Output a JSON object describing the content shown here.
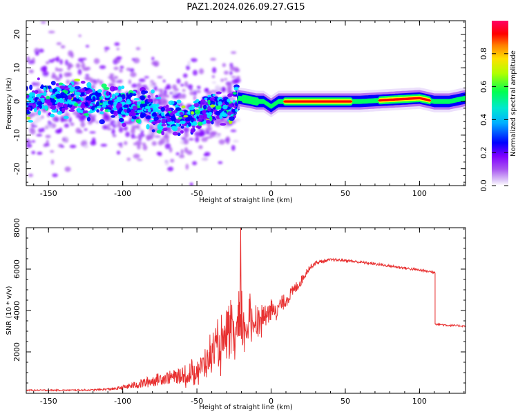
{
  "figure": {
    "title": "PAZ1.2024.026.09.27.G15"
  },
  "chart_data": [
    {
      "type": "heatmap",
      "xlabel": "Height of straight line (km)",
      "ylabel": "Frequency (Hz)",
      "xlim": [
        -165,
        131
      ],
      "ylim": [
        -25,
        24
      ],
      "x_ticks": [
        -150,
        -100,
        -50,
        0,
        50,
        100
      ],
      "y_ticks": [
        -20,
        -10,
        0,
        10,
        20
      ],
      "colorbar": {
        "label": "Normalized spectral amplitude",
        "range": [
          0,
          1
        ],
        "ticks": [
          0.0,
          0.2,
          0.4,
          0.6,
          0.8
        ],
        "colormap": [
          "#ffffff",
          "#e0ccf8",
          "#a855f0",
          "#7f00ff",
          "#0000ff",
          "#00e5ff",
          "#00ff60",
          "#b0ff00",
          "#ffff00",
          "#ff8000",
          "#ff0000",
          "#ff0066"
        ]
      },
      "ridge": {
        "note": "dominant Doppler frequency vs height",
        "x": [
          -165,
          -150,
          -140,
          -130,
          -120,
          -110,
          -100,
          -90,
          -80,
          -70,
          -60,
          -50,
          -40,
          -30,
          -24,
          -22,
          -15,
          -10,
          -5,
          0,
          5,
          10,
          20,
          40,
          60,
          80,
          100,
          110,
          120,
          131
        ],
        "y": [
          0,
          0.5,
          1,
          1,
          0,
          0.5,
          -1,
          -1.5,
          -3,
          -5,
          -5,
          -4,
          -2,
          -2,
          -1.5,
          1,
          0.5,
          0,
          0,
          -1.5,
          0,
          0,
          0,
          0,
          0,
          0.5,
          1,
          0,
          0,
          1
        ]
      }
    },
    {
      "type": "line",
      "xlabel": "Height of straight line (km)",
      "ylabel": "SNR (10 * v/v)",
      "xlim": [
        -165,
        131
      ],
      "ylim": [
        0,
        8000
      ],
      "x_ticks": [
        -150,
        -100,
        -50,
        0,
        50,
        100
      ],
      "y_ticks": [
        2000,
        4000,
        6000,
        8000
      ],
      "series": [
        {
          "color": "#e83030",
          "x": [
            -165,
            -140,
            -120,
            -105,
            -95,
            -85,
            -75,
            -65,
            -55,
            -45,
            -38,
            -30,
            -25,
            -20,
            -10,
            0,
            10,
            20,
            25,
            30,
            40,
            50,
            70,
            90,
            100,
            110,
            110.5,
            120,
            131
          ],
          "y": [
            150,
            150,
            160,
            220,
            350,
            500,
            700,
            800,
            850,
            1400,
            2100,
            2500,
            2700,
            3100,
            3500,
            3900,
            4500,
            5400,
            6000,
            6300,
            6450,
            6420,
            6250,
            6050,
            5950,
            5850,
            3350,
            3280,
            3250
          ],
          "noise": [
            40,
            40,
            45,
            80,
            180,
            320,
            380,
            420,
            500,
            800,
            900,
            1300,
            1400,
            1500,
            800,
            550,
            450,
            300,
            200,
            120,
            80,
            80,
            80,
            80,
            80,
            80,
            60,
            60,
            50
          ]
        }
      ],
      "spike": {
        "x": -20.5,
        "y": 8000
      }
    }
  ]
}
